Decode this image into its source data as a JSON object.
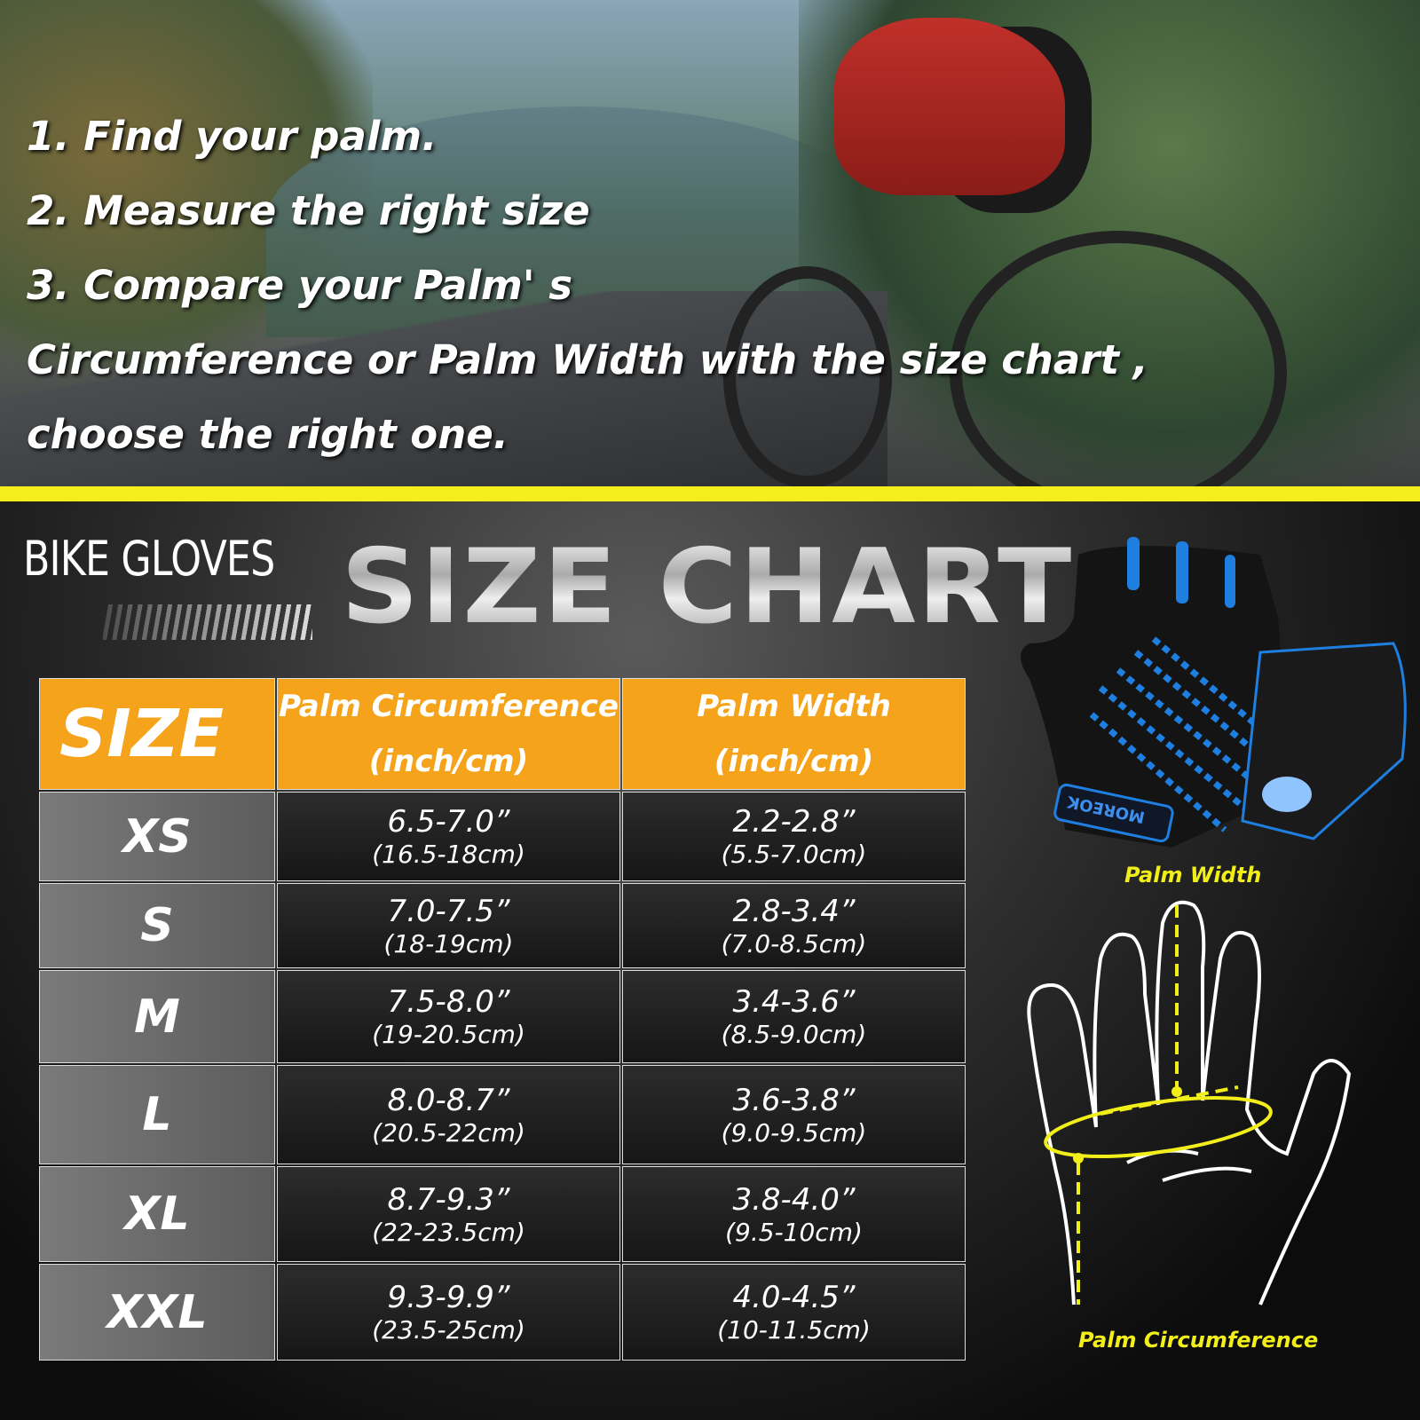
{
  "instructions": [
    "1. Find your palm.",
    "2. Measure the right size",
    "3. Compare your Palm' s",
    "Circumference or Palm Width with the size chart ,",
    "choose the right one."
  ],
  "banner": {
    "subtitle": "BIKE GLOVES",
    "title": "SIZE CHART"
  },
  "colors": {
    "accent_yellow": "#f4ef1c",
    "header_orange": "#f5a31a",
    "glove_blue": "#1e7fe0"
  },
  "table": {
    "headers": {
      "size": "SIZE",
      "circ_line1": "Palm Circumference",
      "circ_line2": "(inch/cm)",
      "width_line1": "Palm Width",
      "width_line2": "(inch/cm)"
    },
    "rows": [
      {
        "size": "XS",
        "circ_in": "6.5-7.0”",
        "circ_cm": "(16.5-18cm)",
        "width_in": "2.2-2.8”",
        "width_cm": "(5.5-7.0cm)"
      },
      {
        "size": "S",
        "circ_in": "7.0-7.5”",
        "circ_cm": "(18-19cm)",
        "width_in": "2.8-3.4”",
        "width_cm": "(7.0-8.5cm)"
      },
      {
        "size": "M",
        "circ_in": "7.5-8.0”",
        "circ_cm": "(19-20.5cm)",
        "width_in": "3.4-3.6”",
        "width_cm": "(8.5-9.0cm)"
      },
      {
        "size": "L",
        "circ_in": "8.0-8.7”",
        "circ_cm": "(20.5-22cm)",
        "width_in": "3.6-3.8”",
        "width_cm": "(9.0-9.5cm)"
      },
      {
        "size": "XL",
        "circ_in": "8.7-9.3”",
        "circ_cm": "(22-23.5cm)",
        "width_in": "3.8-4.0”",
        "width_cm": "(9.5-10cm)"
      },
      {
        "size": "XXL",
        "circ_in": "9.3-9.9”",
        "circ_cm": "(23.5-25cm)",
        "width_in": "4.0-4.5”",
        "width_cm": "(10-11.5cm)"
      }
    ]
  },
  "diagram": {
    "palm_width_label": "Palm Width",
    "palm_circumference_label": "Palm Circumference",
    "glove_brand": "MOREOK"
  }
}
